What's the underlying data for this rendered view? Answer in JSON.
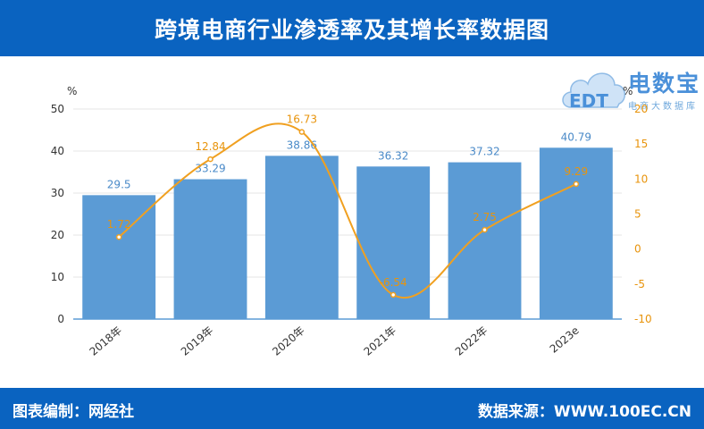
{
  "title": "跨境电商行业渗透率及其增长率数据图",
  "footer": {
    "left": "图表编制：网经社",
    "right": "数据来源：WWW.100EC.CN"
  },
  "logo": {
    "brand": "电数宝",
    "tagline": "电商大数据库",
    "cloud_text": "EDT"
  },
  "colors": {
    "bar": "#5b9bd5",
    "line": "#f0a020",
    "header": "#0a63c0",
    "bar_label": "#4a8ac8",
    "line_label": "#e8940c"
  },
  "chart_data": {
    "type": "bar+line",
    "title": "跨境电商行业渗透率及其增长率数据图",
    "categories": [
      "2018年",
      "2019年",
      "2020年",
      "2021年",
      "2022年",
      "2023e"
    ],
    "series": [
      {
        "name": "渗透率",
        "type": "bar",
        "axis": "left",
        "values": [
          29.5,
          33.29,
          38.86,
          36.32,
          37.32,
          40.79
        ],
        "labels": [
          "29.5",
          "33.29",
          "38.86",
          "36.32",
          "37.32",
          "40.79"
        ]
      },
      {
        "name": "增长率",
        "type": "line",
        "axis": "right",
        "values": [
          1.72,
          12.84,
          16.73,
          -6.54,
          2.75,
          9.29
        ],
        "labels": [
          "1.72",
          "12.84",
          "16.73",
          "-6.54",
          "2.75",
          "9.29"
        ]
      }
    ],
    "y_left": {
      "unit": "%",
      "ylim": [
        0,
        50
      ],
      "ticks": [
        "0",
        "10",
        "20",
        "30",
        "40",
        "50"
      ]
    },
    "y_right": {
      "unit": "%",
      "ylim": [
        -10,
        20
      ],
      "ticks": [
        "-10",
        "-5",
        "0",
        "5",
        "10",
        "15",
        "20"
      ]
    }
  }
}
